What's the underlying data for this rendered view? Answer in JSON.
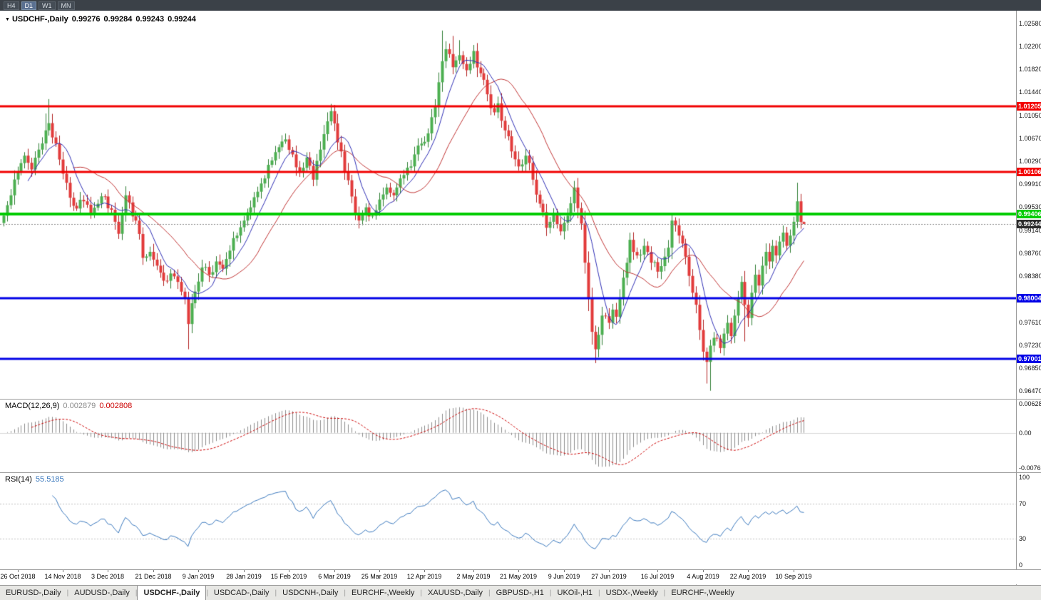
{
  "topbar": {
    "timeframes": [
      {
        "label": "H4",
        "active": false
      },
      {
        "label": "D1",
        "active": true
      },
      {
        "label": "W1",
        "active": false
      },
      {
        "label": "MN",
        "active": false
      }
    ]
  },
  "chart": {
    "title": "USDCHF-,Daily",
    "dropdown_icon": "▼",
    "ohlc": {
      "open": "0.99276",
      "high": "0.99284",
      "low": "0.99243",
      "close": "0.99244"
    }
  },
  "indicators": {
    "macd": {
      "label": "MACD(12,26,9)",
      "value_main": "0.002879",
      "value_signal": "0.002808",
      "params": {
        "fast": 12,
        "slow": 26,
        "signal": 9
      },
      "axis": {
        "top": "0.006286",
        "zero": "0.00",
        "bottom": "-0.00762"
      },
      "colors": {
        "histogram": "#8c8c8c",
        "signal": "#cc0000"
      }
    },
    "rsi": {
      "label": "RSI(14)",
      "value": "55.5185",
      "period": 14,
      "color": "#3a78bd",
      "levels": [
        70,
        30
      ],
      "level_color": "#bcbcbc",
      "axis_labels": [
        {
          "value": 100,
          "label": "100"
        },
        {
          "value": 70,
          "label": "70"
        },
        {
          "value": 30,
          "label": "30"
        },
        {
          "value": 0,
          "label": "0"
        }
      ]
    }
  },
  "price_scale": {
    "ticks": [
      "1.02580",
      "1.02200",
      "1.01820",
      "1.01440",
      "1.01050",
      "1.00670",
      "1.00290",
      "0.99910",
      "0.99530",
      "0.99140",
      "0.98760",
      "0.98380",
      "0.97610",
      "0.97230",
      "0.96850",
      "0.96470"
    ]
  },
  "tabs": {
    "items": [
      {
        "label": "EURUSD-,Daily",
        "active": false
      },
      {
        "label": "AUDUSD-,Daily",
        "active": false
      },
      {
        "label": "USDCHF-,Daily",
        "active": true
      },
      {
        "label": "USDCAD-,Daily",
        "active": false
      },
      {
        "label": "USDCNH-,Daily",
        "active": false
      },
      {
        "label": "EURCHF-,Weekly",
        "active": false
      },
      {
        "label": "XAUUSD-,Daily",
        "active": false
      },
      {
        "label": "GBPUSD-,H1",
        "active": false
      },
      {
        "label": "UKOil-,H1",
        "active": false
      },
      {
        "label": "USDX-,Weekly",
        "active": false
      },
      {
        "label": "EURCHF-,Weekly",
        "active": false
      }
    ]
  },
  "chart_data": {
    "type": "candlestick",
    "symbol": "USDCHF-",
    "timeframe": "Daily",
    "bar_count": 231,
    "ylim": [
      0.96336,
      1.0279
    ],
    "seed": 11,
    "noise_amplitude": 0.0009,
    "bull_color": "#4caf50",
    "bear_color": "#e23b3b",
    "bull_wick": "#2e7d32",
    "bear_wick": "#b02020",
    "price_anchors": [
      [
        0,
        0.9938
      ],
      [
        2,
        0.9972
      ],
      [
        4,
        1.0012
      ],
      [
        6,
        1.0038
      ],
      [
        8,
        1.0015
      ],
      [
        10,
        1.0048
      ],
      [
        12,
        1.008
      ],
      [
        13,
        1.0092
      ],
      [
        15,
        1.0058
      ],
      [
        17,
        1.0008
      ],
      [
        19,
        0.9968
      ],
      [
        21,
        0.995
      ],
      [
        23,
        0.9962
      ],
      [
        25,
        0.9942
      ],
      [
        27,
        0.9958
      ],
      [
        29,
        0.997
      ],
      [
        31,
        0.9948
      ],
      [
        33,
        0.9908
      ],
      [
        35,
        0.9972
      ],
      [
        38,
        0.993
      ],
      [
        40,
        0.9868
      ],
      [
        42,
        0.9878
      ],
      [
        44,
        0.9855
      ],
      [
        46,
        0.983
      ],
      [
        48,
        0.9842
      ],
      [
        50,
        0.9828
      ],
      [
        52,
        0.98
      ],
      [
        53,
        0.9758
      ],
      [
        55,
        0.9812
      ],
      [
        57,
        0.9852
      ],
      [
        59,
        0.984
      ],
      [
        61,
        0.9862
      ],
      [
        63,
        0.985
      ],
      [
        65,
        0.988
      ],
      [
        67,
        0.9905
      ],
      [
        69,
        0.993
      ],
      [
        71,
        0.9952
      ],
      [
        73,
        0.9978
      ],
      [
        75,
        1.0
      ],
      [
        77,
        1.003
      ],
      [
        79,
        1.0052
      ],
      [
        81,
        1.0065
      ],
      [
        83,
        1.004
      ],
      [
        85,
        1.0012
      ],
      [
        87,
        1.0035
      ],
      [
        89,
        0.9998
      ],
      [
        91,
        1.0048
      ],
      [
        93,
        1.0095
      ],
      [
        94,
        1.0112
      ],
      [
        96,
        1.006
      ],
      [
        98,
        1.0012
      ],
      [
        100,
        0.997
      ],
      [
        102,
        0.993
      ],
      [
        104,
        0.9952
      ],
      [
        106,
        0.9938
      ],
      [
        108,
        0.9965
      ],
      [
        110,
        0.9985
      ],
      [
        112,
        0.9972
      ],
      [
        114,
        1.0
      ],
      [
        116,
        1.0018
      ],
      [
        118,
        1.004
      ],
      [
        120,
        1.0058
      ],
      [
        122,
        1.0075
      ],
      [
        124,
        1.012
      ],
      [
        125,
        1.016
      ],
      [
        126,
        1.0195
      ],
      [
        127,
        1.0215
      ],
      [
        129,
        1.0185
      ],
      [
        131,
        1.0205
      ],
      [
        133,
        1.018
      ],
      [
        135,
        1.0212
      ],
      [
        137,
        1.0175
      ],
      [
        139,
        1.014
      ],
      [
        141,
        1.011
      ],
      [
        142,
        1.0125
      ],
      [
        144,
        1.008
      ],
      [
        146,
        1.0045
      ],
      [
        148,
        1.002
      ],
      [
        150,
        1.0038
      ],
      [
        152,
        0.9998
      ],
      [
        154,
        0.9958
      ],
      [
        156,
        0.9918
      ],
      [
        158,
        0.994
      ],
      [
        160,
        0.9912
      ],
      [
        162,
        0.9938
      ],
      [
        164,
        0.9985
      ],
      [
        166,
        0.9925
      ],
      [
        167,
        0.986
      ],
      [
        168,
        0.98
      ],
      [
        169,
        0.9745
      ],
      [
        170,
        0.9716
      ],
      [
        171,
        0.974
      ],
      [
        172,
        0.9772
      ],
      [
        174,
        0.976
      ],
      [
        175,
        0.9782
      ],
      [
        176,
        0.977
      ],
      [
        178,
        0.9835
      ],
      [
        180,
        0.9898
      ],
      [
        182,
        0.9872
      ],
      [
        184,
        0.9888
      ],
      [
        186,
        0.986
      ],
      [
        188,
        0.9845
      ],
      [
        190,
        0.987
      ],
      [
        191,
        0.9885
      ],
      [
        192,
        0.993
      ],
      [
        194,
        0.9905
      ],
      [
        196,
        0.987
      ],
      [
        197,
        0.9838
      ],
      [
        198,
        0.981
      ],
      [
        199,
        0.979
      ],
      [
        200,
        0.9748
      ],
      [
        201,
        0.9712
      ],
      [
        202,
        0.9695
      ],
      [
        203,
        0.9722
      ],
      [
        204,
        0.9735
      ],
      [
        206,
        0.9718
      ],
      [
        207,
        0.9742
      ],
      [
        208,
        0.976
      ],
      [
        209,
        0.9738
      ],
      [
        210,
        0.9772
      ],
      [
        211,
        0.9802
      ],
      [
        212,
        0.9828
      ],
      [
        213,
        0.979
      ],
      [
        214,
        0.9768
      ],
      [
        215,
        0.981
      ],
      [
        216,
        0.984
      ],
      [
        217,
        0.9822
      ],
      [
        218,
        0.9855
      ],
      [
        219,
        0.9878
      ],
      [
        220,
        0.9862
      ],
      [
        221,
        0.9888
      ],
      [
        222,
        0.9872
      ],
      [
        223,
        0.9895
      ],
      [
        224,
        0.991
      ],
      [
        225,
        0.9888
      ],
      [
        226,
        0.9905
      ],
      [
        227,
        0.9928
      ],
      [
        228,
        0.9962
      ],
      [
        229,
        0.99276
      ],
      [
        230,
        0.99244
      ]
    ],
    "wick_overrides": [
      {
        "i": 12,
        "high": 1.0108
      },
      {
        "i": 13,
        "high": 1.0132
      },
      {
        "i": 53,
        "low": 0.9716
      },
      {
        "i": 93,
        "high": 1.011
      },
      {
        "i": 94,
        "high": 1.0124
      },
      {
        "i": 126,
        "high": 1.0246
      },
      {
        "i": 129,
        "high": 1.0237
      },
      {
        "i": 131,
        "high": 1.023
      },
      {
        "i": 135,
        "high": 1.0222
      },
      {
        "i": 164,
        "high": 0.9996
      },
      {
        "i": 170,
        "low": 0.9693
      },
      {
        "i": 192,
        "high": 0.994
      },
      {
        "i": 202,
        "low": 0.9659
      },
      {
        "i": 203,
        "low": 0.9647
      },
      {
        "i": 213,
        "low": 0.9729
      },
      {
        "i": 228,
        "high": 0.9993
      }
    ],
    "last_bar": {
      "open": 0.99276,
      "high": 0.99284,
      "low": 0.99243,
      "close": 0.99244
    },
    "horizontal_levels": [
      {
        "price": 1.01205,
        "color": "#f20000",
        "thickness": 3
      },
      {
        "price": 1.00106,
        "color": "#f20000",
        "thickness": 3
      },
      {
        "price": 0.99406,
        "color": "#00cc00",
        "thickness": 4
      },
      {
        "price": 0.98004,
        "color": "#0000e6",
        "thickness": 3
      },
      {
        "price": 0.97001,
        "color": "#0000e6",
        "thickness": 3
      }
    ],
    "current_price": {
      "value": 0.99244,
      "line_color": "#8a8a8a",
      "tag_color": "#2b2b2b"
    },
    "moving_averages": [
      {
        "type": "sma",
        "period": 8,
        "color": "#2d2db4"
      },
      {
        "type": "sma",
        "period": 21,
        "color": "#c03434"
      }
    ],
    "x_axis_dates": [
      {
        "i": 4,
        "label": "26 Oct 2018"
      },
      {
        "i": 17,
        "label": "14 Nov 2018"
      },
      {
        "i": 30,
        "label": "3 Dec 2018"
      },
      {
        "i": 43,
        "label": "21 Dec 2018"
      },
      {
        "i": 56,
        "label": "9 Jan 2019"
      },
      {
        "i": 69,
        "label": "28 Jan 2019"
      },
      {
        "i": 82,
        "label": "15 Feb 2019"
      },
      {
        "i": 95,
        "label": "6 Mar 2019"
      },
      {
        "i": 108,
        "label": "25 Mar 2019"
      },
      {
        "i": 121,
        "label": "12 Apr 2019"
      },
      {
        "i": 135,
        "label": "2 May 2019"
      },
      {
        "i": 148,
        "label": "21 May 2019"
      },
      {
        "i": 161,
        "label": "9 Jun 2019"
      },
      {
        "i": 174,
        "label": "27 Jun 2019"
      },
      {
        "i": 188,
        "label": "16 Jul 2019"
      },
      {
        "i": 201,
        "label": "4 Aug 2019"
      },
      {
        "i": 214,
        "label": "22 Aug 2019"
      },
      {
        "i": 227,
        "label": "10 Sep 2019"
      }
    ]
  }
}
